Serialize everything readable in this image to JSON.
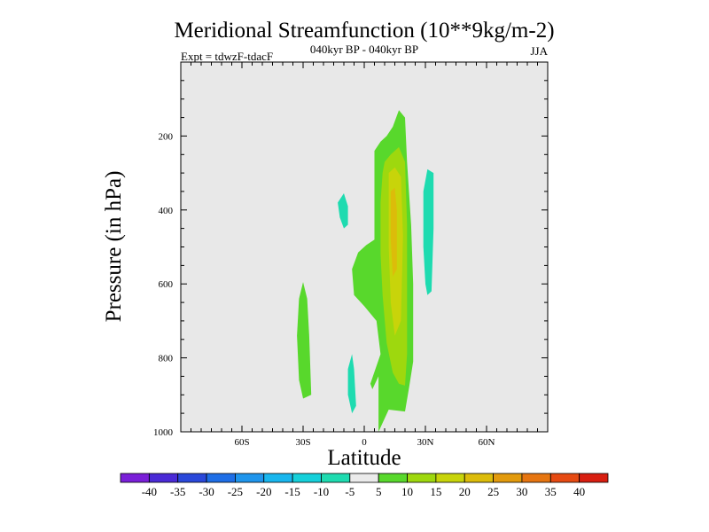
{
  "chart_data": {
    "type": "contour",
    "title": "Meridional Streamfunction (10**9kg/m-2)",
    "subtitle_left": "Expt = tdwzF-tdacF",
    "subtitle_center": "040kyr BP - 040kyr BP",
    "subtitle_right": "JJA",
    "xlabel": "Latitude",
    "ylabel": "Pressure (in hPa)",
    "xlim": [
      -90,
      90
    ],
    "ylim": [
      1000,
      0
    ],
    "x_ticks": [
      {
        "value": -60,
        "label": "60S"
      },
      {
        "value": -30,
        "label": "30S"
      },
      {
        "value": 0,
        "label": "0"
      },
      {
        "value": 30,
        "label": "30N"
      },
      {
        "value": 60,
        "label": "60N"
      }
    ],
    "y_ticks": [
      {
        "value": 200,
        "label": "200"
      },
      {
        "value": 400,
        "label": "400"
      },
      {
        "value": 600,
        "label": "600"
      },
      {
        "value": 800,
        "label": "800"
      },
      {
        "value": 1000,
        "label": "1000"
      }
    ],
    "levels": [
      -40,
      -35,
      -30,
      -25,
      -20,
      -15,
      -10,
      -5,
      5,
      10,
      15,
      20,
      25,
      30,
      35,
      40
    ],
    "colorbar_colors": [
      "#7a1fd8",
      "#4a2ad6",
      "#2a48da",
      "#1e6ee6",
      "#1f95ec",
      "#18b6ee",
      "#15d0da",
      "#1edbb0",
      "#ebebeb",
      "#58d82c",
      "#9ed80e",
      "#c8d40a",
      "#dcbc0a",
      "#e29a0c",
      "#e67510",
      "#e64a12",
      "#d81e10"
    ],
    "background_color": "#e8e8e8",
    "regions": [
      {
        "name": "positive-5-to-10-main",
        "level": "5 to 10",
        "color": "#58d82c",
        "points": [
          [
            7,
            1000
          ],
          [
            12,
            940
          ],
          [
            20,
            945
          ],
          [
            22,
            880
          ],
          [
            24,
            810
          ],
          [
            24,
            600
          ],
          [
            23,
            440
          ],
          [
            21,
            270
          ],
          [
            20,
            150
          ],
          [
            17,
            130
          ],
          [
            14,
            175
          ],
          [
            11,
            200
          ],
          [
            8,
            215
          ],
          [
            5,
            240
          ],
          [
            5,
            480
          ],
          [
            1,
            495
          ],
          [
            -3,
            515
          ],
          [
            -6,
            560
          ],
          [
            -5,
            630
          ],
          [
            0,
            660
          ],
          [
            6,
            700
          ],
          [
            8,
            790
          ],
          [
            3,
            870
          ],
          [
            4,
            885
          ],
          [
            7,
            850
          ]
        ]
      },
      {
        "name": "positive-5-to-10-south",
        "level": "5 to 10",
        "color": "#58d82c",
        "points": [
          [
            -30,
            595
          ],
          [
            -28,
            640
          ],
          [
            -27,
            740
          ],
          [
            -26,
            900
          ],
          [
            -30,
            910
          ],
          [
            -32,
            860
          ],
          [
            -33,
            740
          ],
          [
            -32,
            640
          ]
        ]
      },
      {
        "name": "positive-10-to-15",
        "level": "10 to 15",
        "color": "#9ed80e",
        "points": [
          [
            10,
            270
          ],
          [
            13,
            250
          ],
          [
            17,
            230
          ],
          [
            20,
            270
          ],
          [
            21,
            440
          ],
          [
            21,
            790
          ],
          [
            20,
            875
          ],
          [
            17,
            870
          ],
          [
            14,
            840
          ],
          [
            11,
            760
          ],
          [
            9,
            630
          ],
          [
            8,
            520
          ],
          [
            8,
            380
          ],
          [
            9,
            300
          ]
        ]
      },
      {
        "name": "positive-15-to-20",
        "level": "15 to 20",
        "color": "#c8d40a",
        "points": [
          [
            12,
            300
          ],
          [
            15,
            285
          ],
          [
            18,
            310
          ],
          [
            19,
            470
          ],
          [
            18,
            700
          ],
          [
            15,
            740
          ],
          [
            13,
            650
          ],
          [
            12,
            500
          ]
        ]
      },
      {
        "name": "positive-20-to-25",
        "level": "20 to 25",
        "color": "#dcbc0a",
        "points": [
          [
            13,
            350
          ],
          [
            15,
            340
          ],
          [
            16,
            400
          ],
          [
            16,
            560
          ],
          [
            14,
            580
          ],
          [
            13,
            480
          ]
        ]
      },
      {
        "name": "negative-10-to-5-upper",
        "level": "-10 to -5",
        "color": "#1edbb0",
        "points": [
          [
            -10,
            355
          ],
          [
            -8,
            390
          ],
          [
            -8,
            440
          ],
          [
            -10,
            450
          ],
          [
            -12,
            420
          ],
          [
            -13,
            380
          ]
        ]
      },
      {
        "name": "negative-10-to-5-lower",
        "level": "-10 to -5",
        "color": "#1edbb0",
        "points": [
          [
            -6,
            790
          ],
          [
            -5,
            830
          ],
          [
            -4,
            930
          ],
          [
            -6,
            950
          ],
          [
            -8,
            900
          ],
          [
            -8,
            830
          ]
        ]
      },
      {
        "name": "negative-10-to-5-north",
        "level": "-10 to -5",
        "color": "#1edbb0",
        "points": [
          [
            31,
            290
          ],
          [
            34,
            300
          ],
          [
            34,
            450
          ],
          [
            33,
            620
          ],
          [
            31,
            630
          ],
          [
            30,
            600
          ],
          [
            29,
            500
          ],
          [
            29,
            350
          ]
        ]
      }
    ]
  }
}
